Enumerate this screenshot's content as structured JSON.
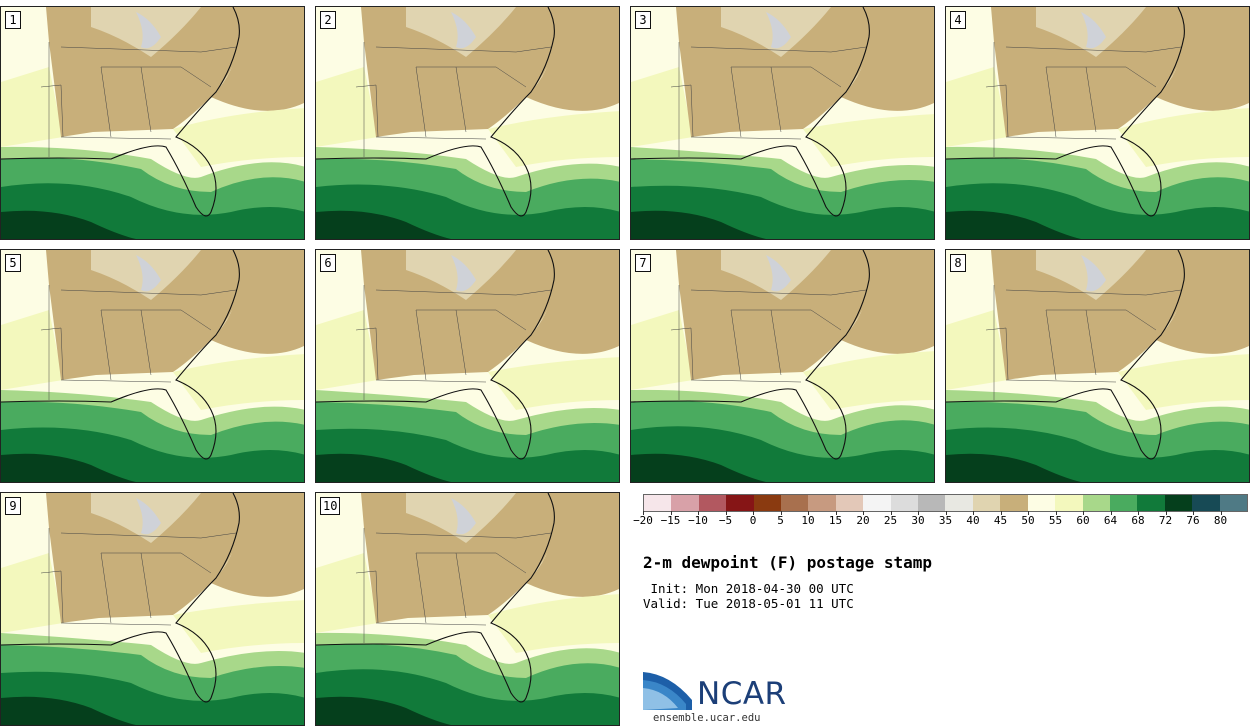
{
  "figure": {
    "title": "2-m dewpoint (F) postage stamp",
    "init_text": " Init: Mon 2018-04-30 00 UTC",
    "valid_text": "Valid: Tue 2018-05-01 11 UTC"
  },
  "members": [
    {
      "label": "1"
    },
    {
      "label": "2"
    },
    {
      "label": "3"
    },
    {
      "label": "4"
    },
    {
      "label": "5"
    },
    {
      "label": "6"
    },
    {
      "label": "7"
    },
    {
      "label": "8"
    },
    {
      "label": "9"
    },
    {
      "label": "10"
    }
  ],
  "colorbar": {
    "unit": "F",
    "tick_labels": [
      "−20",
      "−15",
      "−10",
      "−5",
      "0",
      "5",
      "10",
      "15",
      "20",
      "25",
      "30",
      "35",
      "40",
      "45",
      "50",
      "55",
      "60",
      "64",
      "68",
      "72",
      "76",
      "80"
    ],
    "colors": [
      "#f6e6ea",
      "#d8a1a8",
      "#b25860",
      "#861516",
      "#8a3a10",
      "#a8704e",
      "#c79a80",
      "#e3c8b8",
      "#f4f4f4",
      "#dcdcdc",
      "#b8b8b8",
      "#e8e8e2",
      "#e0d4b0",
      "#c8af7a",
      "#fdfde4",
      "#f3f8bd",
      "#a8d88a",
      "#4aab5f",
      "#117a3a",
      "#053f1c",
      "#174a55",
      "#4f7a85"
    ]
  },
  "map_colors": {
    "dry": "#c8af7a",
    "dry_light": "#e0d4b0",
    "cold": "#cfd2d8",
    "pale": "#fdfde4",
    "yellow": "#f3f8bd",
    "light_green": "#a8d88a",
    "green": "#4aab5f",
    "dark_green": "#117a3a",
    "darkest_green": "#053f1c"
  },
  "logo": {
    "text": "NCAR",
    "url": "ensemble.ucar.edu",
    "color": "#1c3f78"
  }
}
